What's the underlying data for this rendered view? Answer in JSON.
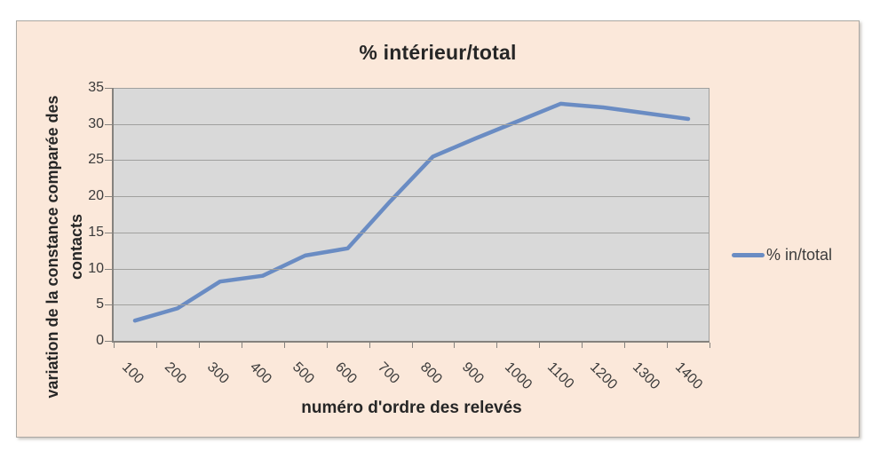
{
  "window": {
    "background": "#ffffff"
  },
  "chart": {
    "y_axis_title_line1": "variation de la constance comparée des",
    "y_axis_title_line2": "contacts"
  },
  "chart_data": {
    "type": "line",
    "title": "% intérieur/total",
    "xlabel": "numéro d'ordre des relevés",
    "ylabel": "variation de la constance comparée des contacts",
    "categories": [
      100,
      200,
      300,
      400,
      500,
      600,
      700,
      800,
      900,
      1000,
      1100,
      1200,
      1300,
      1400
    ],
    "series": [
      {
        "name": "% in/total",
        "values": [
          2.8,
          4.5,
          8.2,
          9,
          11.8,
          12.8,
          19.3,
          25.5,
          28,
          30.4,
          32.8,
          32.3,
          31.5,
          30.7
        ]
      }
    ],
    "ylim": [
      0,
      35
    ],
    "ytick_step": 5,
    "xtick_rotation_deg": 45,
    "grid": true,
    "legend_position": "right",
    "legend_entries": [
      "% in/total"
    ],
    "colors": {
      "series_line": "#6a8cc3",
      "chart_background": "#fbe8da",
      "plot_background": "#d9d9d9",
      "gridline": "#a0a09e",
      "axis_line": "#85827e",
      "tick_text": "#3b3b3b",
      "title_text": "#262626",
      "frame_border": "#aba8a3"
    }
  }
}
